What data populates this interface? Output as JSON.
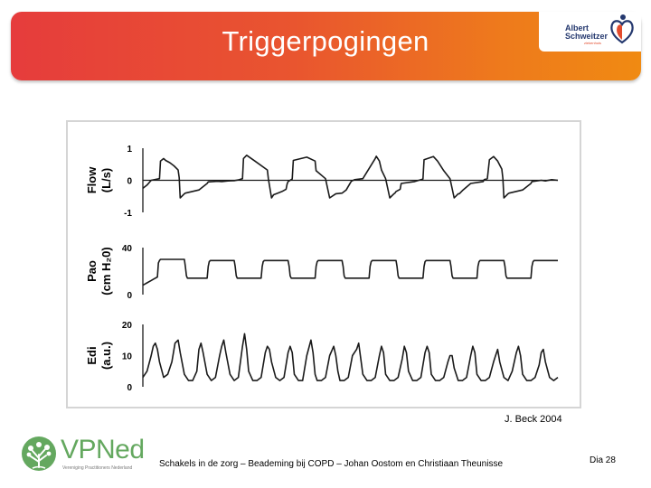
{
  "slide": {
    "title": "Triggerpogingen",
    "source": "J. Beck 2004",
    "footer": "Schakels in de zorg  –  Beademing bij COPD  –  Johan Oostom en Christiaan Theunisse",
    "slide_number": "Dia 28"
  },
  "logos": {
    "hospital": {
      "line1": "Albert",
      "line2": "Schweitzer",
      "line3": "ziekenhuis",
      "icon": "heart-figure-icon",
      "colors": [
        "#24386e",
        "#e34b2c"
      ]
    },
    "vpned": {
      "name": "VPNed",
      "subtitle": "Vereniging Practitioners Nederland",
      "icon": "tree-icon",
      "color": "#64a85f"
    }
  },
  "chart_data": {
    "type": "line",
    "layout": "three stacked panels, shared time axis",
    "colors": {
      "line": "#1a1a1a",
      "background": "#ffffff"
    },
    "panels": [
      {
        "name": "flow",
        "ylabel": "Flow",
        "yunit": "(L/s)",
        "ylim": [
          -1,
          1
        ],
        "yticks": [
          "1",
          "0",
          "-1"
        ],
        "reference_line": 0,
        "x": [
          0,
          2,
          4,
          8,
          8.5,
          10,
          11,
          13,
          15,
          17,
          17.5,
          18,
          20,
          20.5,
          27,
          31,
          31.5,
          36,
          38,
          41,
          44,
          46,
          48,
          48.5,
          50,
          54,
          60,
          60.5,
          62,
          63,
          65,
          67,
          69,
          69.5,
          70,
          72,
          72.5,
          79,
          83,
          83.5,
          88,
          90,
          93,
          96,
          98,
          100,
          100.5,
          102,
          106,
          112,
          112.5,
          114,
          115,
          117,
          119,
          121,
          121.5,
          122,
          124,
          124.5,
          131,
          135,
          135.5,
          140,
          142,
          145,
          148,
          150,
          152,
          152.5,
          154,
          158,
          164,
          164.5,
          166,
          167,
          169,
          171,
          173,
          173.5,
          174,
          176,
          176.5,
          183,
          187,
          187.5,
          192,
          194,
          197,
          200
        ],
        "y": [
          -0.25,
          -0.15,
          0.0,
          0.05,
          0.6,
          0.68,
          0.62,
          0.55,
          0.45,
          0.32,
          0.08,
          -0.55,
          -0.42,
          -0.4,
          -0.3,
          -0.1,
          -0.05,
          -0.03,
          -0.04,
          -0.02,
          -0.01,
          0.01,
          0.05,
          0.68,
          0.78,
          0.6,
          0.32,
          0.05,
          -0.55,
          -0.45,
          -0.4,
          -0.35,
          -0.28,
          -0.12,
          -0.04,
          0.04,
          0.62,
          0.72,
          0.6,
          0.3,
          0.05,
          -0.55,
          -0.42,
          -0.4,
          -0.3,
          -0.08,
          -0.03,
          0.02,
          0.05,
          0.68,
          0.75,
          0.6,
          0.32,
          0.05,
          -0.55,
          -0.42,
          -0.4,
          -0.35,
          -0.28,
          -0.1,
          -0.04,
          0.04,
          0.64,
          0.74,
          0.6,
          0.3,
          0.05,
          -0.55,
          -0.42,
          -0.42,
          -0.32,
          -0.1,
          -0.04,
          0.02,
          0.05,
          0.64,
          0.74,
          0.6,
          0.35,
          0.05,
          -0.55,
          -0.42,
          -0.4,
          -0.3,
          -0.1,
          -0.04,
          0.0,
          -0.02,
          0.02,
          0.0
        ]
      },
      {
        "name": "pao",
        "ylabel": "Pao",
        "yunit": "(cm H₂0)",
        "ylim": [
          0,
          40
        ],
        "yticks": [
          "40",
          "0"
        ],
        "x": [
          0,
          1,
          2,
          3,
          4,
          5,
          6,
          7,
          7.5,
          8,
          8.5,
          20,
          20.5,
          21,
          21.5,
          31,
          31.5,
          32,
          32.5,
          44,
          44.5,
          45,
          45.5,
          57,
          57.5,
          58,
          58.5,
          70,
          70.5,
          71,
          71.5,
          83,
          83.5,
          84,
          84.5,
          96,
          96.5,
          97,
          97.5,
          109,
          109.5,
          110,
          110.5,
          122,
          122.5,
          123,
          123.5,
          135,
          135.5,
          136,
          136.5,
          148,
          148.5,
          149,
          149.5,
          161,
          161.5,
          162,
          162.5,
          174,
          174.5,
          175,
          175.5,
          187,
          187.5,
          188,
          188.5,
          200
        ],
        "y": [
          8,
          9,
          10,
          11,
          12,
          13,
          14,
          15,
          27,
          29,
          30,
          30,
          24,
          16,
          14,
          14,
          24,
          28,
          29,
          29,
          24,
          16,
          14,
          14,
          24,
          28,
          29,
          29,
          24,
          16,
          14,
          14,
          24,
          28,
          29,
          29,
          24,
          16,
          14,
          14,
          24,
          28,
          29,
          29,
          24,
          16,
          14,
          14,
          24,
          28,
          29,
          29,
          24,
          16,
          14,
          14,
          24,
          28,
          29,
          29,
          24,
          16,
          14,
          14,
          24,
          28,
          29,
          29
        ]
      },
      {
        "name": "edi",
        "ylabel": "Edi",
        "yunit": "(a.u.)",
        "ylim": [
          0,
          20
        ],
        "yticks": [
          "20",
          "10",
          "0"
        ],
        "x": [
          0,
          2,
          4,
          5,
          6,
          7,
          8,
          10,
          12,
          14,
          15.5,
          17,
          18,
          20,
          22,
          24,
          26,
          27,
          28,
          29,
          31,
          33,
          35,
          37,
          38,
          39,
          40,
          42,
          44,
          46,
          48,
          49,
          50,
          51,
          53,
          55,
          57,
          59,
          60,
          61,
          62,
          64,
          66,
          68,
          70,
          71,
          72,
          73,
          75,
          77,
          79,
          81,
          82,
          83,
          84,
          86,
          88,
          90,
          92,
          93,
          94,
          95,
          97,
          99,
          101,
          103,
          104,
          105,
          106,
          108,
          110,
          112,
          114,
          115,
          116,
          117,
          119,
          121,
          123,
          125,
          126,
          127,
          128,
          130,
          132,
          134,
          136,
          137,
          138,
          139,
          141,
          143,
          145,
          147,
          148,
          149,
          150,
          152,
          154,
          156,
          158,
          159,
          160,
          161,
          163,
          165,
          167,
          169,
          170,
          171,
          172,
          174,
          176,
          178,
          180,
          181,
          182,
          183,
          185,
          187,
          189,
          191,
          192,
          193,
          194,
          196,
          198,
          200
        ],
        "y": [
          3,
          5,
          10,
          13,
          14,
          12,
          8,
          3,
          4,
          8,
          14,
          15,
          11,
          4,
          2,
          2,
          5,
          12,
          14,
          11,
          4,
          2,
          3,
          10,
          13,
          15,
          11,
          4,
          2,
          3,
          13,
          17,
          12,
          5,
          2,
          2,
          3,
          11,
          13,
          12,
          8,
          3,
          2,
          3,
          11,
          13,
          11,
          4,
          2,
          2,
          10,
          15,
          11,
          4,
          2,
          2,
          3,
          10,
          13,
          10,
          5,
          2,
          2,
          3,
          10,
          12,
          14,
          9,
          4,
          2,
          2,
          3,
          10,
          13,
          11,
          4,
          2,
          2,
          3,
          9,
          13,
          11,
          5,
          2,
          2,
          3,
          11,
          13,
          11,
          4,
          2,
          2,
          3,
          8,
          10,
          10,
          6,
          2,
          2,
          3,
          10,
          13,
          11,
          4,
          2,
          2,
          3,
          8,
          10,
          12,
          8,
          3,
          2,
          5,
          11,
          13,
          10,
          4,
          2,
          2,
          3,
          7,
          11,
          12,
          8,
          3,
          2,
          3
        ]
      }
    ]
  }
}
